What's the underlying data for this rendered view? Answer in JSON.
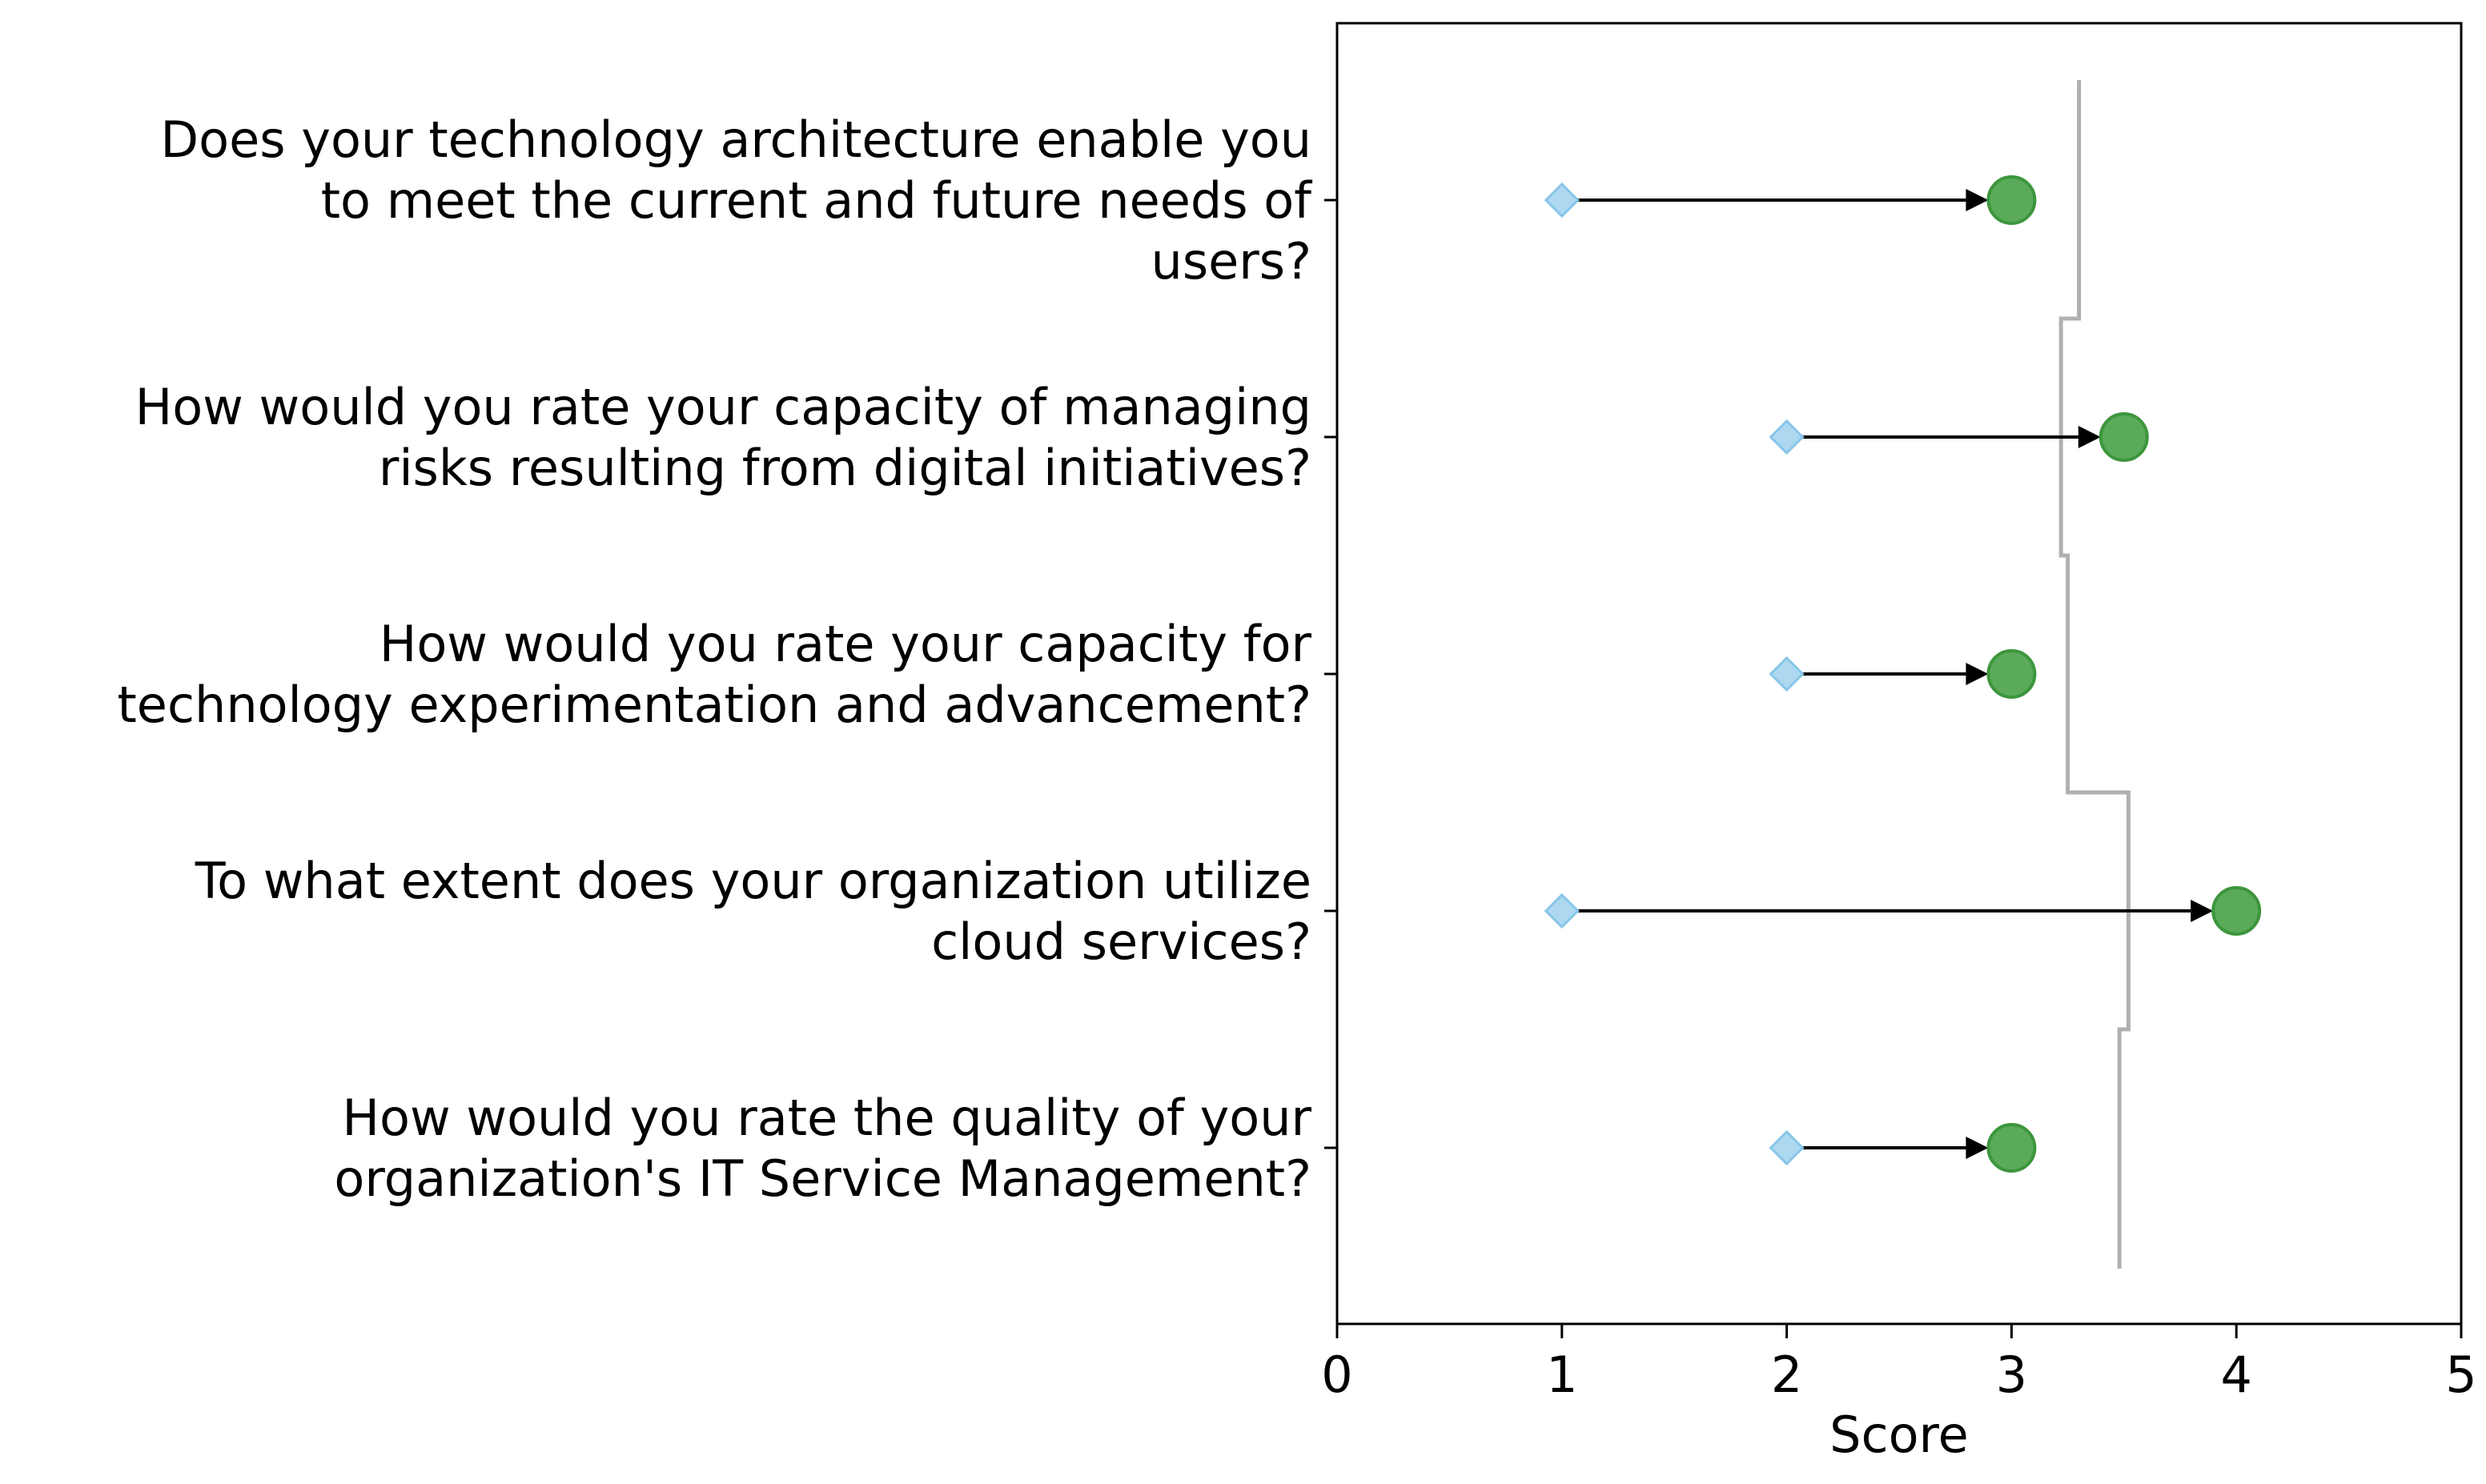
{
  "chart_data": {
    "type": "dumbbell",
    "title": "",
    "xlabel": "Score",
    "ylabel": "",
    "xlim": [
      0,
      5
    ],
    "xticks": [
      0,
      1,
      2,
      3,
      4,
      5
    ],
    "grid": false,
    "legend": "none",
    "colors": {
      "start": "#add8f0",
      "start_edge": "#87c5e8",
      "end": "#5aaa5a",
      "end_edge": "#3c963c",
      "arrow": "#000000",
      "step": "#b0b0b0"
    },
    "categories": [
      [
        "Does your technology architecture enable you",
        "to meet the current and future needs of",
        "users?"
      ],
      [
        "How would you rate your capacity of managing",
        "risks resulting from digital initiatives?"
      ],
      [
        "How would you rate your capacity for",
        "technology experimentation and advancement?"
      ],
      [
        "To what extent does your organization utilize",
        "cloud services?"
      ],
      [
        "How would you rate the quality of your",
        "organization's IT Service Management?"
      ]
    ],
    "start_values": [
      1,
      2,
      2,
      1,
      2
    ],
    "end_values": [
      3,
      3.5,
      3,
      4,
      3
    ],
    "step_line": [
      3.3,
      3.22,
      3.25,
      3.52,
      3.48
    ]
  }
}
